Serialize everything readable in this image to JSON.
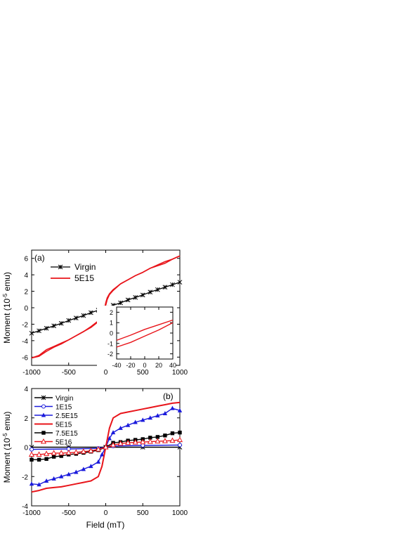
{
  "figure": {
    "xlabel": "Field (mT)"
  },
  "chart_data": [
    {
      "panel": "(a)",
      "type": "line",
      "xlabel": "",
      "ylabel": "Moment (10^-5 emu)",
      "xlim": [
        -1000,
        1000
      ],
      "ylim": [
        -7,
        7
      ],
      "x_ticks": [
        "-1000",
        "-500",
        "0",
        "500",
        "1000"
      ],
      "y_ticks": [
        "-6",
        "-4",
        "-2",
        "0",
        "2",
        "4",
        "6"
      ],
      "legend": "top-left",
      "series": [
        {
          "name": "Virgin",
          "color": "#000000",
          "marker": "x",
          "x": [
            -1000,
            -900,
            -800,
            -700,
            -600,
            -500,
            -400,
            -300,
            -200,
            -100,
            0,
            100,
            200,
            300,
            400,
            500,
            600,
            700,
            800,
            900,
            1000
          ],
          "y": [
            -3.1,
            -2.8,
            -2.5,
            -2.2,
            -1.9,
            -1.55,
            -1.25,
            -0.95,
            -0.6,
            -0.3,
            0,
            0.3,
            0.6,
            0.95,
            1.25,
            1.55,
            1.9,
            2.2,
            2.5,
            2.8,
            3.1
          ]
        },
        {
          "name": "5E15",
          "color": "#e8141a",
          "marker": "none",
          "x": [
            -1000,
            -900,
            -800,
            -700,
            -600,
            -500,
            -400,
            -300,
            -200,
            -100,
            -50,
            -20,
            0,
            20,
            50,
            100,
            200,
            300,
            400,
            500,
            600,
            700,
            800,
            900,
            1000
          ],
          "y_branch1": [
            -6.1,
            -5.8,
            -5.1,
            -4.7,
            -4.3,
            -3.9,
            -3.4,
            -2.9,
            -2.4,
            -1.7,
            -1.0,
            -0.3,
            0.6,
            1.2,
            1.7,
            2.2,
            2.9,
            3.4,
            3.9,
            4.3,
            4.8,
            5.2,
            5.6,
            5.9,
            6.3
          ],
          "y_branch2": [
            -6.1,
            -5.9,
            -5.3,
            -4.8,
            -4.4,
            -3.9,
            -3.4,
            -2.9,
            -2.3,
            -1.6,
            -0.9,
            -0.2,
            0.3,
            1.0,
            1.6,
            2.1,
            2.9,
            3.4,
            3.9,
            4.3,
            4.8,
            5.1,
            5.4,
            5.9,
            6.3
          ]
        }
      ],
      "inset": {
        "xlim": [
          -40,
          40
        ],
        "ylim": [
          -2.5,
          2.5
        ],
        "x_ticks": [
          "-40",
          "-20",
          "0",
          "20",
          "40"
        ],
        "y_ticks": [
          "-2",
          "-1",
          "0",
          "1",
          "2"
        ],
        "x": [
          -40,
          -20,
          0,
          20,
          40
        ],
        "y_upper": [
          -0.7,
          -0.2,
          0.35,
          0.8,
          1.25
        ],
        "y_lower": [
          -1.35,
          -0.9,
          -0.3,
          0.3,
          1.0
        ]
      }
    },
    {
      "panel": "(b)",
      "type": "line",
      "xlabel": "Field (mT)",
      "ylabel": "Moment (10^-5 emu)",
      "xlim": [
        -1000,
        1000
      ],
      "ylim": [
        -4,
        4
      ],
      "x_ticks": [
        "-1000",
        "-500",
        "0",
        "500",
        "1000"
      ],
      "y_ticks": [
        "-4",
        "-2",
        "0",
        "2",
        "4"
      ],
      "legend": "top-left",
      "series": [
        {
          "name": "Virgin",
          "color": "#000000",
          "marker": "x",
          "x": [
            -1000,
            -500,
            0,
            500,
            1000
          ],
          "y": [
            0,
            0,
            0,
            0,
            0
          ]
        },
        {
          "name": "1E15",
          "color": "#1a1adc",
          "marker": "circle-open",
          "x": [
            -1000,
            -500,
            -100,
            0,
            100,
            500,
            1000
          ],
          "y": [
            -0.15,
            -0.12,
            -0.08,
            0,
            0.08,
            0.12,
            0.15
          ]
        },
        {
          "name": "2.5E15",
          "color": "#1a1adc",
          "marker": "triangle-filled",
          "x": [
            -1000,
            -900,
            -800,
            -700,
            -600,
            -500,
            -400,
            -300,
            -200,
            -100,
            -50,
            0,
            50,
            100,
            200,
            300,
            400,
            500,
            600,
            700,
            800,
            900,
            1000
          ],
          "y": [
            -2.5,
            -2.55,
            -2.3,
            -2.15,
            -2.0,
            -1.85,
            -1.7,
            -1.5,
            -1.3,
            -1.0,
            -0.5,
            0,
            0.6,
            1.0,
            1.3,
            1.5,
            1.7,
            1.85,
            2.0,
            2.15,
            2.3,
            2.65,
            2.5
          ]
        },
        {
          "name": "5E15",
          "color": "#e8141a",
          "marker": "none",
          "x": [
            -1000,
            -900,
            -800,
            -700,
            -600,
            -500,
            -400,
            -300,
            -200,
            -100,
            -50,
            0,
            50,
            100,
            200,
            300,
            400,
            500,
            600,
            700,
            800,
            900,
            1000
          ],
          "y": [
            -3.05,
            -2.95,
            -2.8,
            -2.75,
            -2.7,
            -2.6,
            -2.5,
            -2.4,
            -2.3,
            -2.0,
            -1.3,
            0,
            1.3,
            2.0,
            2.3,
            2.4,
            2.5,
            2.6,
            2.7,
            2.8,
            2.9,
            3.0,
            3.05
          ]
        },
        {
          "name": "7.5E15",
          "color": "#000000",
          "marker": "square-filled",
          "x": [
            -1000,
            -900,
            -800,
            -700,
            -600,
            -500,
            -400,
            -300,
            -200,
            -100,
            0,
            100,
            200,
            300,
            400,
            500,
            600,
            700,
            800,
            900,
            1000
          ],
          "y": [
            -0.85,
            -0.85,
            -0.8,
            -0.65,
            -0.6,
            -0.5,
            -0.45,
            -0.38,
            -0.3,
            -0.2,
            0,
            0.3,
            0.35,
            0.45,
            0.5,
            0.55,
            0.65,
            0.7,
            0.8,
            0.95,
            1.0
          ]
        },
        {
          "name": "5E16",
          "color": "#e8141a",
          "marker": "triangle-open",
          "x": [
            -1000,
            -900,
            -800,
            -700,
            -600,
            -500,
            -400,
            -300,
            -200,
            -100,
            0,
            100,
            200,
            300,
            400,
            500,
            600,
            700,
            800,
            900,
            1000
          ],
          "y": [
            -0.5,
            -0.5,
            -0.45,
            -0.4,
            -0.4,
            -0.38,
            -0.35,
            -0.3,
            -0.25,
            -0.15,
            0,
            0.15,
            0.25,
            0.3,
            0.33,
            0.35,
            0.38,
            0.4,
            0.42,
            0.45,
            0.5
          ]
        }
      ]
    }
  ]
}
